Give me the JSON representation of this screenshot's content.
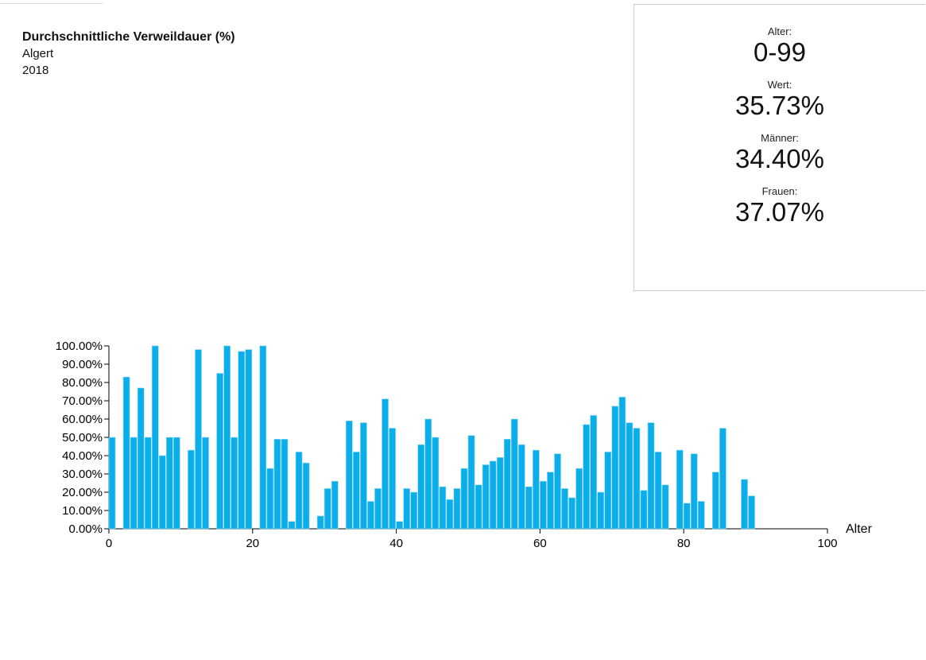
{
  "header": {
    "title": "Durchschnittliche Verweildauer (%)",
    "region": "Algert",
    "year": "2018"
  },
  "panel": {
    "items": [
      {
        "label": "Alter:",
        "value": "0-99"
      },
      {
        "label": "Wert:",
        "value": "35.73%"
      },
      {
        "label": "Männer:",
        "value": "34.40%"
      },
      {
        "label": "Frauen:",
        "value": "37.07%"
      }
    ]
  },
  "chart_data": {
    "type": "bar",
    "x_label": "Alter",
    "color": "#0aaeea",
    "x": [
      0,
      2,
      3,
      4,
      5,
      6,
      7,
      8,
      9,
      11,
      12,
      13,
      15,
      16,
      17,
      18,
      19,
      21,
      22,
      23,
      24,
      25,
      26,
      27,
      29,
      30,
      31,
      33,
      34,
      35,
      36,
      37,
      38,
      39,
      40,
      41,
      42,
      43,
      44,
      45,
      46,
      47,
      48,
      49,
      50,
      51,
      52,
      53,
      54,
      55,
      56,
      57,
      58,
      59,
      60,
      61,
      62,
      63,
      64,
      65,
      66,
      67,
      68,
      69,
      70,
      71,
      72,
      73,
      74,
      75,
      76,
      77,
      79,
      80,
      81,
      82,
      84,
      85,
      88,
      89
    ],
    "values": [
      50,
      83,
      50,
      77,
      50,
      100,
      40,
      50,
      50,
      43,
      98,
      50,
      85,
      100,
      50,
      97,
      98,
      100,
      33,
      49,
      49,
      4,
      42,
      36,
      7,
      22,
      26,
      59,
      42,
      58,
      15,
      22,
      71,
      55,
      4,
      22,
      20,
      46,
      60,
      50,
      23,
      16,
      22,
      33,
      51,
      24,
      35,
      37,
      39,
      49,
      60,
      46,
      23,
      43,
      26,
      31,
      41,
      22,
      17,
      33,
      57,
      62,
      20,
      42,
      67,
      72,
      58,
      55,
      21,
      58,
      42,
      24,
      43,
      14,
      41,
      15,
      31,
      55,
      27,
      18
    ],
    "xlim": [
      0,
      100
    ],
    "xticks": [
      0,
      20,
      40,
      60,
      80,
      100
    ],
    "ylim": [
      0,
      100
    ],
    "yticks": [
      {
        "value": 0,
        "label": "0.00%"
      },
      {
        "value": 10,
        "label": "10.00%"
      },
      {
        "value": 20,
        "label": "20.00%"
      },
      {
        "value": 30,
        "label": "30.00%"
      },
      {
        "value": 40,
        "label": "40.00%"
      },
      {
        "value": 50,
        "label": "50.00%"
      },
      {
        "value": 60,
        "label": "60.00%"
      },
      {
        "value": 70,
        "label": "70.00%"
      },
      {
        "value": 80,
        "label": "80.00%"
      },
      {
        "value": 90,
        "label": "90.00%"
      },
      {
        "value": 100,
        "label": "100.00%"
      }
    ]
  }
}
